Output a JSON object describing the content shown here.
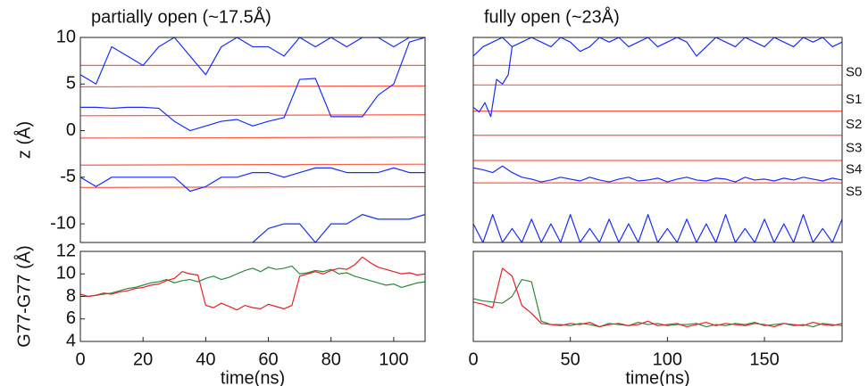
{
  "chart_data": [
    {
      "type": "line",
      "title": "partially open (~17.5Å)",
      "ylabel": "z (Å)",
      "xlim": [
        0,
        110
      ],
      "ylim": [
        -12,
        10
      ],
      "yticks": [
        10,
        5,
        0,
        -5,
        -10
      ],
      "series": [
        {
          "color": "#ff5a4a",
          "x": [
            0,
            110
          ],
          "values": [
            7.0,
            7.0
          ]
        },
        {
          "color": "#ff5a4a",
          "x": [
            0,
            110
          ],
          "values": [
            4.7,
            4.8
          ]
        },
        {
          "color": "#ff5a4a",
          "x": [
            0,
            110
          ],
          "values": [
            1.6,
            1.7
          ]
        },
        {
          "color": "#ff5a4a",
          "x": [
            0,
            110
          ],
          "values": [
            -0.8,
            -0.7
          ]
        },
        {
          "color": "#ff5a4a",
          "x": [
            0,
            110
          ],
          "values": [
            -3.7,
            -3.6
          ]
        },
        {
          "color": "#ff5a4a",
          "x": [
            0,
            110
          ],
          "values": [
            -6.1,
            -6.0
          ]
        },
        {
          "color": "#1a2cff",
          "x": [
            0,
            5,
            10,
            15,
            20,
            25,
            30,
            35,
            40,
            45,
            50,
            55,
            60,
            65,
            70,
            75,
            80,
            85,
            90,
            95,
            100,
            105,
            110
          ],
          "values": [
            6,
            5,
            9,
            8,
            7,
            9,
            10,
            8,
            6,
            9,
            10,
            9,
            9,
            8,
            10,
            9,
            10,
            9,
            10,
            10,
            9,
            10,
            10
          ]
        },
        {
          "color": "#1a2cff",
          "x": [
            0,
            5,
            10,
            15,
            20,
            25,
            30,
            35,
            40,
            45,
            50,
            55,
            60,
            65,
            70,
            75,
            80,
            85,
            90,
            95,
            100,
            105,
            110
          ],
          "values": [
            2.5,
            2.5,
            2.4,
            2.5,
            2.5,
            2.4,
            1,
            0,
            0.5,
            1,
            1.2,
            0.5,
            1,
            1.4,
            5.5,
            5.6,
            1.5,
            1.5,
            1.5,
            3.8,
            5,
            9.5,
            10
          ]
        },
        {
          "color": "#1a2cff",
          "x": [
            0,
            5,
            10,
            15,
            20,
            25,
            30,
            35,
            40,
            45,
            50,
            55,
            60,
            65,
            70,
            75,
            80,
            85,
            90,
            95,
            100,
            105,
            110
          ],
          "values": [
            -5,
            -6,
            -5,
            -5,
            -5,
            -5,
            -5,
            -6.5,
            -6,
            -5,
            -5,
            -4.5,
            -4.5,
            -5,
            -4.5,
            -4,
            -4,
            -4.5,
            -4.5,
            -4.5,
            -4,
            -4.5,
            -4.5
          ]
        },
        {
          "color": "#1a2cff",
          "x": [
            55,
            60,
            65,
            70,
            75,
            80,
            85,
            90,
            95,
            100,
            105,
            110
          ],
          "values": [
            -12,
            -10.5,
            -10,
            -10,
            -12,
            -10,
            -10,
            -9,
            -9.5,
            -9.5,
            -9.5,
            -9
          ]
        }
      ]
    },
    {
      "type": "line",
      "title": "fully open (~23Å)",
      "xlim": [
        0,
        190
      ],
      "ylim": [
        -12,
        10
      ],
      "series": [
        {
          "color": "#ff5a4a",
          "x": [
            0,
            190
          ],
          "values": [
            7.0,
            7.0
          ]
        },
        {
          "color": "#ff5a4a",
          "x": [
            0,
            190
          ],
          "values": [
            4.9,
            4.9
          ]
        },
        {
          "color": "#ff5a4a",
          "x": [
            0,
            190
          ],
          "values": [
            2.1,
            2.1
          ]
        },
        {
          "color": "#ff5a4a",
          "x": [
            0,
            190
          ],
          "values": [
            -0.5,
            -0.5
          ]
        },
        {
          "color": "#ff5a4a",
          "x": [
            0,
            190
          ],
          "values": [
            -3.2,
            -3.2
          ]
        },
        {
          "color": "#ff5a4a",
          "x": [
            0,
            190
          ],
          "values": [
            -5.6,
            -5.6
          ]
        },
        {
          "color": "#1a2cff",
          "x": [
            0,
            5,
            10,
            15,
            20,
            25,
            30,
            35,
            40,
            45,
            50,
            55,
            60,
            65,
            70,
            75,
            80,
            85,
            90,
            95,
            100,
            105,
            110,
            115,
            120,
            125,
            130,
            135,
            140,
            145,
            150,
            155,
            160,
            165,
            170,
            175,
            180,
            185,
            190
          ],
          "values": [
            8,
            9,
            9.5,
            10,
            9,
            9.5,
            10,
            9.5,
            9,
            10,
            9.5,
            8.5,
            9,
            10,
            9.5,
            10,
            9,
            9.5,
            10,
            9,
            9.5,
            10,
            9.5,
            8,
            9,
            10,
            9.5,
            9,
            10,
            9.5,
            9,
            10,
            9.5,
            9,
            10,
            9.5,
            10,
            9,
            9.5
          ]
        },
        {
          "color": "#1a2cff",
          "x": [
            0,
            3,
            6,
            9,
            12,
            15,
            18,
            20
          ],
          "values": [
            2.5,
            2,
            3,
            1.5,
            5.5,
            5,
            6,
            9
          ]
        },
        {
          "color": "#1a2cff",
          "x": [
            0,
            5,
            10,
            15,
            20,
            25,
            30,
            35,
            40,
            45,
            50,
            55,
            60,
            65,
            70,
            75,
            80,
            85,
            90,
            95,
            100,
            105,
            110,
            115,
            120,
            125,
            130,
            135,
            140,
            145,
            150,
            155,
            160,
            165,
            170,
            175,
            180,
            185,
            190
          ],
          "values": [
            -4,
            -4.2,
            -4.5,
            -3.8,
            -4.5,
            -5,
            -5.2,
            -5.5,
            -5.3,
            -5,
            -5.2,
            -5.4,
            -5,
            -5.3,
            -5.5,
            -5.2,
            -5,
            -5.4,
            -5.3,
            -5.1,
            -5.5,
            -5.2,
            -5,
            -5.3,
            -5.4,
            -5.1,
            -5.2,
            -5.5,
            -5,
            -5.3,
            -5.2,
            -5.4,
            -5.1,
            -5.3,
            -5,
            -5.2,
            -5.4,
            -5.1,
            -5.3
          ]
        },
        {
          "color": "#1a2cff",
          "x": [
            0,
            5,
            10,
            15,
            20,
            25,
            30,
            35,
            40,
            45,
            50,
            55,
            60,
            65,
            70,
            75,
            80,
            85,
            90,
            95,
            100,
            105,
            110,
            115,
            120,
            125,
            130,
            135,
            140,
            145,
            150,
            155,
            160,
            165,
            170,
            175,
            180,
            185,
            190
          ],
          "values": [
            -10,
            -12,
            -9,
            -12,
            -10.5,
            -12,
            -9.5,
            -12,
            -10,
            -12,
            -9,
            -12,
            -10.5,
            -12,
            -9.5,
            -12,
            -10,
            -12,
            -9,
            -12,
            -10.5,
            -12,
            -9.5,
            -12,
            -10,
            -12,
            -9,
            -12,
            -10.5,
            -12,
            -9.5,
            -12,
            -10,
            -12,
            -9,
            -12,
            -10.5,
            -12,
            -9.5
          ]
        }
      ],
      "site_labels": [
        {
          "label": "S0",
          "y": 6.2
        },
        {
          "label": "S1",
          "y": 3.3
        },
        {
          "label": "S2",
          "y": 0.6
        },
        {
          "label": "S3",
          "y": -1.9
        },
        {
          "label": "S4",
          "y": -4.2
        },
        {
          "label": "S5",
          "y": -6.6
        }
      ]
    },
    {
      "type": "line",
      "ylabel": "G77-G77 (Å)",
      "xlabel": "time(ns)",
      "xlim": [
        0,
        110
      ],
      "xticks": [
        0,
        20,
        40,
        60,
        80,
        100
      ],
      "ylim": [
        4,
        12
      ],
      "yticks": [
        4,
        6,
        8,
        10,
        12
      ],
      "series": [
        {
          "color": "#2a8a3a",
          "x": [
            0,
            2.5,
            5,
            7.5,
            10,
            12.5,
            15,
            17.5,
            20,
            22.5,
            25,
            27.5,
            30,
            32.5,
            35,
            37.5,
            40,
            42.5,
            45,
            47.5,
            50,
            52.5,
            55,
            57.5,
            60,
            62.5,
            65,
            67.5,
            70,
            72.5,
            75,
            77.5,
            80,
            82.5,
            85,
            87.5,
            90,
            92.5,
            95,
            97.5,
            100,
            102.5,
            105,
            107.5,
            110
          ],
          "values": [
            8,
            8,
            8.1,
            8.2,
            8.3,
            8.5,
            8.7,
            8.8,
            9,
            9.2,
            9.3,
            9.5,
            9.2,
            9.4,
            9.5,
            9.3,
            9.6,
            9.8,
            9.5,
            9.7,
            10,
            10.3,
            10.5,
            10.2,
            10.6,
            10.4,
            10.5,
            10.7,
            10,
            10.1,
            10.3,
            10.2,
            10.4,
            10,
            10.1,
            9.8,
            9.6,
            9.4,
            9.2,
            9,
            9.1,
            8.8,
            9,
            9.2,
            9.3
          ]
        },
        {
          "color": "#e8202a",
          "x": [
            0,
            2.5,
            5,
            7.5,
            10,
            12.5,
            15,
            17.5,
            20,
            22.5,
            25,
            27.5,
            30,
            32.5,
            35,
            37.5,
            40,
            42.5,
            45,
            47.5,
            50,
            52.5,
            55,
            57.5,
            60,
            62.5,
            65,
            67.5,
            70,
            72.5,
            75,
            77.5,
            80,
            82.5,
            85,
            87.5,
            90,
            92.5,
            95,
            97.5,
            100,
            102.5,
            105,
            107.5,
            110
          ],
          "values": [
            8.2,
            8,
            8.1,
            8.3,
            8.2,
            8.4,
            8.5,
            8.7,
            8.8,
            9,
            9.1,
            9.4,
            9.6,
            10.2,
            10,
            9.9,
            7.2,
            7,
            7.4,
            7.1,
            6.8,
            7.2,
            7,
            6.9,
            7.3,
            7.1,
            6.9,
            7.2,
            9.8,
            10,
            10.2,
            10,
            10.3,
            10.5,
            10.4,
            10.8,
            11.5,
            11,
            10.6,
            10.4,
            10.2,
            10,
            10.1,
            9.9,
            10
          ]
        }
      ]
    },
    {
      "type": "line",
      "xlabel": "time(ns)",
      "xlim": [
        0,
        190
      ],
      "xticks": [
        0,
        50,
        100,
        150
      ],
      "ylim": [
        4,
        12
      ],
      "series": [
        {
          "color": "#2a8a3a",
          "x": [
            0,
            5,
            10,
            15,
            20,
            25,
            30,
            35,
            40,
            45,
            50,
            55,
            60,
            65,
            70,
            75,
            80,
            85,
            90,
            95,
            100,
            105,
            110,
            115,
            120,
            125,
            130,
            135,
            140,
            145,
            150,
            155,
            160,
            165,
            170,
            175,
            180,
            185,
            190
          ],
          "values": [
            7.8,
            7.6,
            7.5,
            7.4,
            8,
            9.5,
            9.3,
            5.8,
            5.5,
            5.5,
            5.4,
            5.6,
            5.5,
            5.3,
            5.6,
            5.5,
            5.4,
            5.7,
            5.5,
            5.6,
            5.4,
            5.5,
            5.5,
            5.6,
            5.3,
            5.5,
            5.4,
            5.6,
            5.5,
            5.7,
            5.4,
            5.5,
            5.6,
            5.4,
            5.5,
            5.3,
            5.6,
            5.5,
            5.4
          ]
        },
        {
          "color": "#e8202a",
          "x": [
            0,
            5,
            10,
            15,
            20,
            25,
            30,
            35,
            40,
            45,
            50,
            55,
            60,
            65,
            70,
            75,
            80,
            85,
            90,
            95,
            100,
            105,
            110,
            115,
            120,
            125,
            130,
            135,
            140,
            145,
            150,
            155,
            160,
            165,
            170,
            175,
            180,
            185,
            190
          ],
          "values": [
            7.5,
            7.3,
            7,
            10.5,
            9.8,
            7.2,
            6.5,
            5.6,
            5.5,
            5.4,
            5.6,
            5.5,
            5.7,
            5.3,
            5.5,
            5.6,
            5.4,
            5.5,
            5.8,
            5.4,
            5.5,
            5.6,
            5.3,
            5.5,
            5.7,
            5.4,
            5.6,
            5.5,
            5.4,
            5.6,
            5.5,
            5.3,
            5.6,
            5.5,
            5.4,
            5.7,
            5.5,
            5.4,
            5.6
          ]
        }
      ]
    }
  ]
}
